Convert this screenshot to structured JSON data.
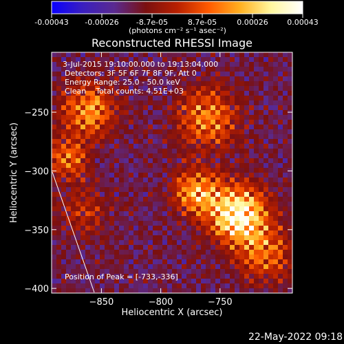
{
  "colorbar": {
    "tick_labels": [
      "-0.00043",
      "-0.00026",
      "-8.7e-05",
      "8.7e-05",
      "0.00026",
      "0.00043"
    ],
    "units_label": "(photons cm⁻² s⁻¹ asec⁻²)",
    "range": [
      -0.00043,
      0.00043
    ],
    "colors": [
      "#0a00ff",
      "#3a1fbf",
      "#5a2a90",
      "#7a1010",
      "#b82000",
      "#ff5a00",
      "#ffb020",
      "#fff8a0",
      "#ffffff"
    ]
  },
  "chart_data": {
    "type": "heatmap",
    "title": "Reconstructed RHESSI Image",
    "xlabel": "Heliocentric X (arcsec)",
    "ylabel": "Heliocentric Y (arcsec)",
    "xlim": [
      -892,
      -689
    ],
    "ylim": [
      -404,
      -199
    ],
    "xticks": [
      -850,
      -800,
      -750
    ],
    "xtick_labels": [
      "−850",
      "−800",
      "−750"
    ],
    "yticks": [
      -250,
      -300,
      -350,
      -400
    ],
    "ytick_labels": [
      "−250",
      "−300",
      "−350",
      "−400"
    ],
    "peak": {
      "x": -733,
      "y": -336
    },
    "sources": [
      {
        "x": -735,
        "y": -337,
        "sigma": 16,
        "amp": 1.0
      },
      {
        "x": -770,
        "y": -318,
        "sigma": 14,
        "amp": 0.6
      },
      {
        "x": -760,
        "y": -255,
        "sigma": 18,
        "amp": 0.5
      },
      {
        "x": -860,
        "y": -248,
        "sigma": 16,
        "amp": 0.55
      },
      {
        "x": -878,
        "y": -290,
        "sigma": 12,
        "amp": 0.45
      },
      {
        "x": -712,
        "y": -370,
        "sigma": 16,
        "amp": 0.45
      },
      {
        "x": -865,
        "y": -335,
        "sigma": 14,
        "amp": 0.25
      }
    ],
    "annotations": {
      "time_range": "3-Jul-2015 19:10:00.000 to 19:13:04.000",
      "detectors": "Detectors: 3F 5F 6F 7F 8F 9F, Att 0",
      "energy": "Energy Range: 25.0 - 50.0 keV",
      "clean": "Clean    Total counts: 4.51E+03",
      "peak_label": "Position of Peak = [-733,-336]"
    }
  },
  "timestamp": "22-May-2022 09:18"
}
